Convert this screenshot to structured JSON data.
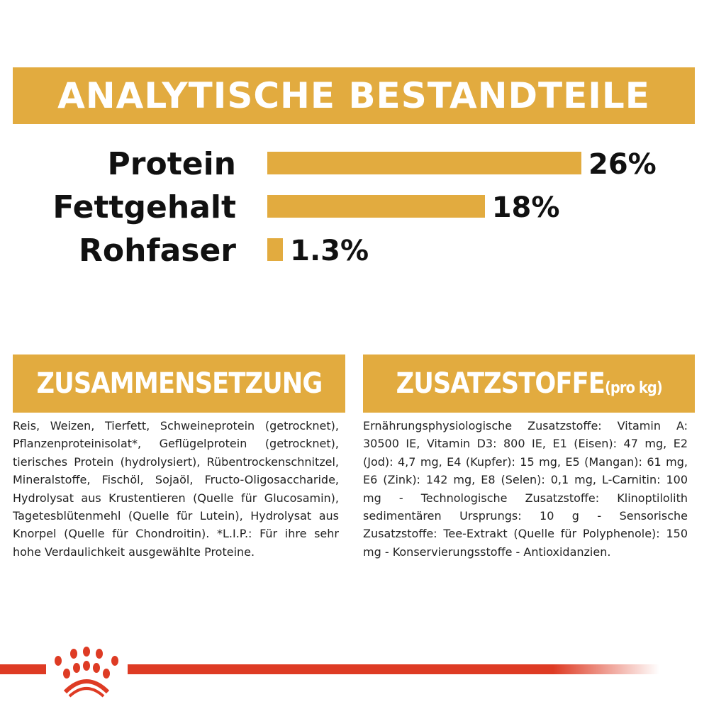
{
  "header": {
    "title": "ANALYTISCHE BESTANDTEILE"
  },
  "colors": {
    "accent": "#e2ab3f",
    "brand_red": "#de3b24",
    "text": "#1a1a1a"
  },
  "analytics": [
    {
      "label": "Protein",
      "value_text": "26%",
      "value": 26
    },
    {
      "label": "Fettgehalt",
      "value_text": "18%",
      "value": 18
    },
    {
      "label": "Rohfaser",
      "value_text": "1.3%",
      "value": 1.3
    }
  ],
  "composition": {
    "title": "ZUSAMMENSETZUNG",
    "text": "Reis, Weizen, Tierfett, Schweineprotein (getrocknet), Pflanzenproteinisolat*, Geflügelprotein (getrocknet), tierisches Protein (hydrolysiert), Rübentrockenschnitzel, Mineralstoffe, Fischöl, Sojaöl, Fructo-Oligosaccharide, Hydrolysat aus Krustentieren (Quelle für Glucosamin), Tagetesblütenmehl (Quelle für Lutein), Hydrolysat aus Knorpel (Quelle für Chondroitin). *L.I.P.: Für ihre sehr hohe Verdaulichkeit ausgewählte Proteine."
  },
  "additives": {
    "title": "ZUSATZSTOFFE",
    "subtitle": "(pro kg)",
    "text": "Ernährungsphysiologische Zusatzstoffe: Vitamin A: 30500 IE, Vitamin D3: 800 IE, E1 (Eisen): 47 mg, E2 (Jod): 4,7 mg, E4 (Kupfer): 15 mg, E5 (Mangan): 61 mg, E6 (Zink): 142 mg, E8 (Selen): 0,1 mg, L-Carnitin: 100 mg - Technologische Zusatzstoffe: Klinoptilolith sedimentären Ursprungs: 10 g - Sensorische Zusatzstoffe: Tee-Extrakt (Quelle für Polyphenole): 150 mg - Konservierungsstoffe - Antioxidanzien."
  },
  "footer": {
    "logo_icon": "royal-canin-crown-icon"
  }
}
